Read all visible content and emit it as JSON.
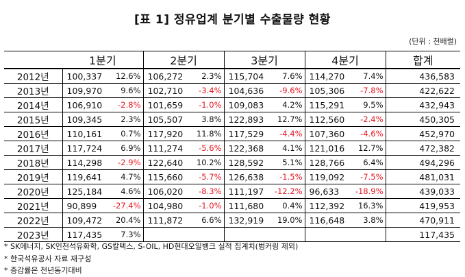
{
  "title": "[표 1] 정유업계 분기별 수출물량 현황",
  "unit": "(단위 : 천배럴)",
  "headers": {
    "q1": "1분기",
    "q2": "2분기",
    "q3": "3분기",
    "q4": "4분기",
    "total": "합계"
  },
  "rows": [
    {
      "year": "2012년",
      "q1": "100,337",
      "q1p": "12.6%",
      "q2": "106,272",
      "q2p": "2.3%",
      "q3": "115,704",
      "q3p": "7.6%",
      "q4": "114,270",
      "q4p": "7.4%",
      "total": "436,583"
    },
    {
      "year": "2013년",
      "q1": "109,970",
      "q1p": "9.6%",
      "q2": "102,710",
      "q2p": "-3.4%",
      "q3": "104,636",
      "q3p": "-9.6%",
      "q4": "105,306",
      "q4p": "-7.8%",
      "total": "422,622"
    },
    {
      "year": "2014년",
      "q1": "106,910",
      "q1p": "-2.8%",
      "q2": "101,659",
      "q2p": "-1.0%",
      "q3": "109,083",
      "q3p": "4.2%",
      "q4": "115,291",
      "q4p": "9.5%",
      "total": "432,943"
    },
    {
      "year": "2015년",
      "q1": "109,345",
      "q1p": "2.3%",
      "q2": "105,507",
      "q2p": "3.8%",
      "q3": "122,893",
      "q3p": "12.7%",
      "q4": "112,560",
      "q4p": "-2.4%",
      "total": "450,305"
    },
    {
      "year": "2016년",
      "q1": "110,161",
      "q1p": "0.7%",
      "q2": "117,920",
      "q2p": "11.8%",
      "q3": "117,529",
      "q3p": "-4.4%",
      "q4": "107,360",
      "q4p": "-4.6%",
      "total": "452,970"
    },
    {
      "year": "2017년",
      "q1": "117,724",
      "q1p": "6.9%",
      "q2": "111,274",
      "q2p": "-5.6%",
      "q3": "122,368",
      "q3p": "4.1%",
      "q4": "121,016",
      "q4p": "12.7%",
      "total": "472,382"
    },
    {
      "year": "2018년",
      "q1": "114,298",
      "q1p": "-2.9%",
      "q2": "122,640",
      "q2p": "10.2%",
      "q3": "128,592",
      "q3p": "5.1%",
      "q4": "128,766",
      "q4p": "6.4%",
      "total": "494,296"
    },
    {
      "year": "2019년",
      "q1": "119,641",
      "q1p": "4.7%",
      "q2": "115,660",
      "q2p": "-5.7%",
      "q3": "126,638",
      "q3p": "-1.5%",
      "q4": "119,092",
      "q4p": "-7.5%",
      "total": "481,031"
    },
    {
      "year": "2020년",
      "q1": "125,184",
      "q1p": "4.6%",
      "q2": "106,020",
      "q2p": "-8.3%",
      "q3": "111,197",
      "q3p": "-12.2%",
      "q4": "96,633",
      "q4p": "-18.9%",
      "total": "439,033"
    },
    {
      "year": "2021년",
      "q1": "90,899",
      "q1p": "-27.4%",
      "q2": "104,980",
      "q2p": "-1.0%",
      "q3": "111,680",
      "q3p": "0.4%",
      "q4": "112,392",
      "q4p": "16.3%",
      "total": "419,953"
    },
    {
      "year": "2022년",
      "q1": "109,472",
      "q1p": "20.4%",
      "q2": "111,872",
      "q2p": "6.6%",
      "q3": "132,919",
      "q3p": "19.0%",
      "q4": "116,648",
      "q4p": "3.8%",
      "total": "470,911"
    },
    {
      "year": "2023년",
      "q1": "117,435",
      "q1p": "7.3%",
      "q2": "",
      "q2p": "",
      "q3": "",
      "q3p": "",
      "q4": "",
      "q4p": "",
      "total": "117,435"
    }
  ],
  "notes": [
    "* SK에너지, SK인천석유화학, GS칼텍스, S-OIL, HD현대오일뱅크 실적 집계치(벙커링 제외)",
    "* 한국석유공사 자료 재구성",
    "* 증감률은 전년동기대비"
  ],
  "colors": {
    "negative": "#e8141e",
    "text": "#111111"
  }
}
